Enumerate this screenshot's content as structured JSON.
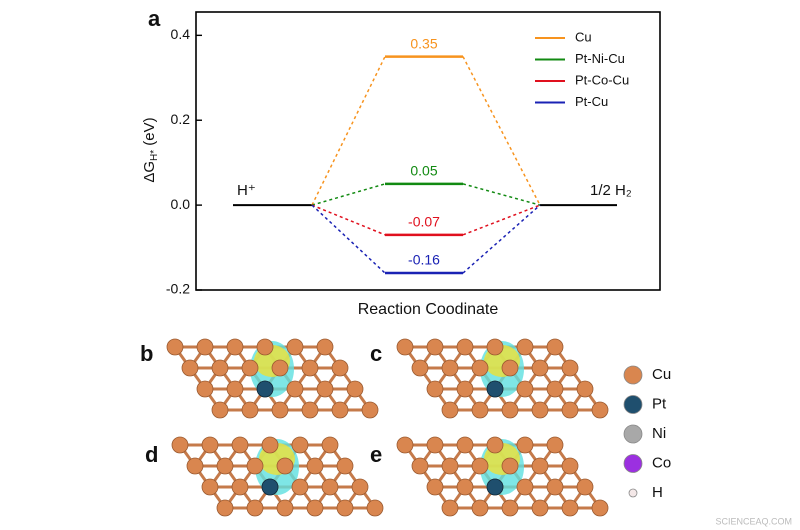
{
  "chart_data": {
    "type": "energy",
    "panel_label": "a",
    "y_label": {
      "main": "ΔG",
      "sub": "H*",
      "unit": " (eV)"
    },
    "x_label": "Reaction Coodinate",
    "ylim": [
      -0.2,
      0.455
    ],
    "yticks": [
      -0.2,
      {
        "value": 0,
        "label": "0.0"
      },
      0.2,
      0.4
    ],
    "states": [
      {
        "label": "H⁺",
        "value": 0
      },
      {
        "label": "1/2 H₂",
        "value": 0
      }
    ],
    "series": [
      {
        "name": "Cu",
        "color": "#f7931e",
        "value": 0.35
      },
      {
        "name": "Pt-Ni-Cu",
        "color": "#128a12",
        "value": 0.05
      },
      {
        "name": "Pt-Co-Cu",
        "color": "#e0101e",
        "value": -0.07
      },
      {
        "name": "Pt-Cu",
        "color": "#1a22b4",
        "value": -0.16
      }
    ],
    "legend": "upper right"
  },
  "panels": [
    "b",
    "c",
    "d",
    "e"
  ],
  "atom_legend": [
    {
      "name": "Cu",
      "color": "#d9864f"
    },
    {
      "name": "Pt",
      "color": "#1f4f6e"
    },
    {
      "name": "Ni",
      "color": "#a8a8a8"
    },
    {
      "name": "Co",
      "color": "#9b30e0"
    },
    {
      "name": "H",
      "color": "#f4e8e8"
    }
  ],
  "watermark": "SCIENCEAQ.COM"
}
